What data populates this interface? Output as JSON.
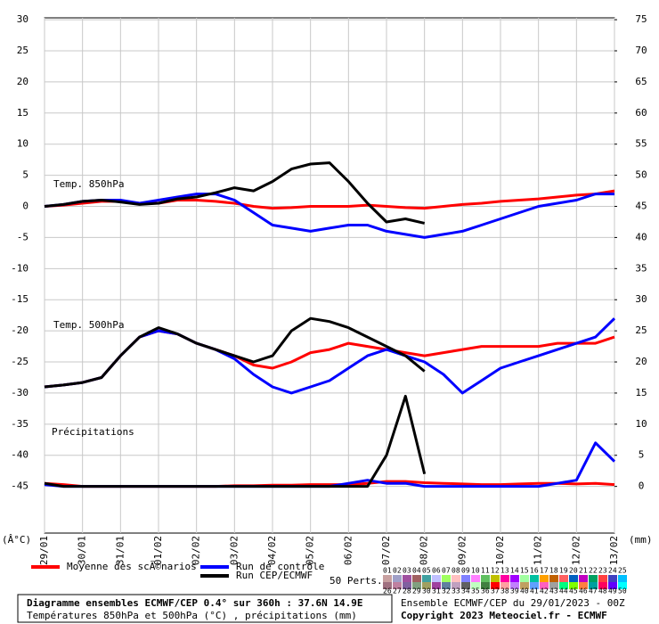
{
  "chart_data": {
    "type": "line",
    "title": "Diagramme ensembles ECMWF/CEP 0.4° sur 360h : 37.6N 14.9E",
    "subtitle": "Températures 850hPa et 500hPa (°C) , précipitations (mm)",
    "run_info": "Ensemble ECMWF/CEP du 29/01/2023 - 00Z",
    "copyright": "Copyright 2023 Meteociel.fr - ECMWF",
    "y_unit": "(Â°C)",
    "y2_unit": "(mm)",
    "x": [
      0,
      12,
      24,
      36,
      48,
      60,
      72,
      84,
      96,
      108,
      120,
      132,
      144,
      156,
      168,
      180,
      192,
      204,
      216,
      228,
      240,
      252,
      264,
      276,
      288,
      300,
      312,
      324,
      336,
      348,
      360
    ],
    "xlim": [
      0,
      360
    ],
    "xticks": [
      {
        "value": 0,
        "label": "29/01"
      },
      {
        "value": 24,
        "label": "30/01"
      },
      {
        "value": 48,
        "label": "31/01"
      },
      {
        "value": 72,
        "label": "01/02"
      },
      {
        "value": 96,
        "label": "02/02"
      },
      {
        "value": 120,
        "label": "03/02"
      },
      {
        "value": 144,
        "label": "04/02"
      },
      {
        "value": 168,
        "label": "05/02"
      },
      {
        "value": 192,
        "label": "06/02"
      },
      {
        "value": 216,
        "label": "07/02"
      },
      {
        "value": 240,
        "label": "08/02"
      },
      {
        "value": 264,
        "label": "09/02"
      },
      {
        "value": 288,
        "label": "10/02"
      },
      {
        "value": 312,
        "label": "11/02"
      },
      {
        "value": 336,
        "label": "12/02"
      },
      {
        "value": 360,
        "label": "13/02"
      }
    ],
    "ylim": [
      -52.5,
      30.3
    ],
    "yticks": [
      30,
      25,
      20,
      15,
      10,
      5,
      0,
      -5,
      -10,
      -15,
      -20,
      -25,
      -30,
      -35,
      -40,
      -45
    ],
    "y2lim": [
      -7.5,
      75.3
    ],
    "y2ticks": [
      75,
      70,
      65,
      60,
      55,
      50,
      45,
      40,
      35,
      30,
      25,
      20,
      15,
      10,
      5,
      0
    ],
    "grid": true,
    "legend": [
      {
        "name": "Moyenne des scÃ©narios",
        "color": "#ff0000"
      },
      {
        "name": "Run de contrôle",
        "color": "#0000ff"
      },
      {
        "name": "Run CEP/ECMWF",
        "color": "#000000"
      }
    ],
    "members_label": "50 Perts.",
    "members": [
      {
        "label": "01",
        "color": "#c8a0a0"
      },
      {
        "label": "02",
        "color": "#a0a0c8"
      },
      {
        "label": "03",
        "color": "#a050a0"
      },
      {
        "label": "04",
        "color": "#a06060"
      },
      {
        "label": "05",
        "color": "#40a0a0"
      },
      {
        "label": "06",
        "color": "#c0c0ff"
      },
      {
        "label": "07",
        "color": "#a0ff60"
      },
      {
        "label": "08",
        "color": "#ffc0c0"
      },
      {
        "label": "09",
        "color": "#8080ff"
      },
      {
        "label": "10",
        "color": "#ff80ff"
      },
      {
        "label": "11",
        "color": "#60c060"
      },
      {
        "label": "12",
        "color": "#c0c000"
      },
      {
        "label": "13",
        "color": "#ff00a0"
      },
      {
        "label": "14",
        "color": "#a000ff"
      },
      {
        "label": "15",
        "color": "#a0ffa0"
      },
      {
        "label": "16",
        "color": "#00c0a0"
      },
      {
        "label": "17",
        "color": "#ffa000"
      },
      {
        "label": "18",
        "color": "#c06000"
      },
      {
        "label": "19",
        "color": "#ff6060"
      },
      {
        "label": "20",
        "color": "#0060c0"
      },
      {
        "label": "21",
        "color": "#c000c0"
      },
      {
        "label": "22",
        "color": "#00a060"
      },
      {
        "label": "23",
        "color": "#ff4040"
      },
      {
        "label": "24",
        "color": "#4040c0"
      },
      {
        "label": "25",
        "color": "#00c0ff"
      },
      {
        "label": "26",
        "color": "#a07080"
      },
      {
        "label": "27",
        "color": "#c080a0"
      },
      {
        "label": "28",
        "color": "#8060a0"
      },
      {
        "label": "29",
        "color": "#80a080"
      },
      {
        "label": "30",
        "color": "#a0a060"
      },
      {
        "label": "31",
        "color": "#a040a0"
      },
      {
        "label": "32",
        "color": "#6080a0"
      },
      {
        "label": "33",
        "color": "#c0a0c0"
      },
      {
        "label": "34",
        "color": "#606060"
      },
      {
        "label": "35",
        "color": "#c0ffc0"
      },
      {
        "label": "36",
        "color": "#408040"
      },
      {
        "label": "37",
        "color": "#ff0000"
      },
      {
        "label": "38",
        "color": "#ffa0a0"
      },
      {
        "label": "39",
        "color": "#c080ff"
      },
      {
        "label": "40",
        "color": "#c0a060"
      },
      {
        "label": "41",
        "color": "#60a0ff"
      },
      {
        "label": "42",
        "color": "#ff60c0"
      },
      {
        "label": "43",
        "color": "#a0a0a0"
      },
      {
        "label": "44",
        "color": "#00ff80"
      },
      {
        "label": "45",
        "color": "#80ff00"
      },
      {
        "label": "46",
        "color": "#ff8040"
      },
      {
        "label": "47",
        "color": "#00a0a0"
      },
      {
        "label": "48",
        "color": "#ff0060"
      },
      {
        "label": "49",
        "color": "#6000ff"
      },
      {
        "label": "50",
        "color": "#00ffff"
      }
    ],
    "groups": [
      {
        "label": "Temp. 850hPa",
        "series": [
          {
            "color": "#ff0000",
            "values": [
              0,
              0.2,
              0.5,
              0.8,
              0.8,
              0.5,
              0.5,
              1,
              1,
              0.8,
              0.5,
              0,
              -0.3,
              -0.2,
              0,
              0,
              0,
              0.2,
              0,
              -0.2,
              -0.3,
              0,
              0.3,
              0.5,
              0.8,
              1,
              1.2,
              1.5,
              1.8,
              2,
              2.5
            ]
          },
          {
            "color": "#0000ff",
            "values": [
              0,
              0.3,
              0.8,
              1,
              1,
              0.5,
              1,
              1.5,
              2,
              2,
              1,
              -1,
              -3,
              -3.5,
              -4,
              -3.5,
              -3,
              -3,
              -4,
              -4.5,
              -5,
              -4.5,
              -4,
              -3,
              -2,
              -1,
              0,
              0.5,
              1,
              2,
              2
            ]
          },
          {
            "color": "#000000",
            "values": [
              0,
              0.3,
              0.8,
              1,
              0.7,
              0.3,
              0.5,
              1.2,
              1.5,
              2.2,
              3,
              2.5,
              4,
              6,
              6.8,
              7,
              4,
              0.5,
              -2.5,
              -2,
              -2.7,
              null,
              null,
              null,
              null,
              null,
              null,
              null,
              null,
              null,
              null
            ]
          }
        ]
      },
      {
        "label": "Temp. 500hPa",
        "series": [
          {
            "color": "#ff0000",
            "values": [
              -29,
              -28.7,
              -28.3,
              -27.5,
              -24,
              -21,
              -20,
              -20.5,
              -22,
              -23,
              -24,
              -25.5,
              -26,
              -25,
              -23.5,
              -23,
              -22,
              -22.5,
              -23,
              -23.5,
              -24,
              -23.5,
              -23,
              -22.5,
              -22.5,
              -22.5,
              -22.5,
              -22,
              -22,
              -22,
              -21
            ]
          },
          {
            "color": "#0000ff",
            "values": [
              -29,
              -28.7,
              -28.3,
              -27.5,
              -24,
              -21,
              -20,
              -20.5,
              -22,
              -23,
              -24.5,
              -27,
              -29,
              -30,
              -29,
              -28,
              -26,
              -24,
              -23,
              -24,
              -25,
              -27,
              -30,
              -28,
              -26,
              -25,
              -24,
              -23,
              -22,
              -21,
              -18
            ]
          },
          {
            "color": "#000000",
            "values": [
              -29,
              -28.7,
              -28.3,
              -27.5,
              -24,
              -21,
              -19.5,
              -20.5,
              -22,
              -23,
              -24,
              -25,
              -24,
              -20,
              -18,
              -18.5,
              -19.5,
              -21,
              -22.5,
              -24,
              -26.5,
              null,
              null,
              null,
              null,
              null,
              null,
              null,
              null,
              null,
              null
            ]
          }
        ]
      },
      {
        "label": "Précipitations",
        "series": [
          {
            "color": "#ff0000",
            "axis": "y2",
            "values": [
              0.5,
              0.3,
              0,
              0,
              0,
              0,
              0,
              0,
              0,
              0,
              0.1,
              0.1,
              0.2,
              0.2,
              0.3,
              0.3,
              0.3,
              0.5,
              0.8,
              0.8,
              0.6,
              0.5,
              0.4,
              0.3,
              0.3,
              0.4,
              0.5,
              0.5,
              0.4,
              0.5,
              0.3
            ]
          },
          {
            "color": "#0000ff",
            "axis": "y2",
            "values": [
              0.3,
              0,
              0,
              0,
              0,
              0,
              0,
              0,
              0,
              0,
              0,
              0,
              0,
              0,
              0,
              0,
              0.5,
              1,
              0.5,
              0.5,
              0,
              0,
              0,
              0,
              0,
              0,
              0,
              0.5,
              1,
              7,
              4
            ]
          },
          {
            "color": "#000000",
            "axis": "y2",
            "values": [
              0.5,
              0,
              0,
              0,
              0,
              0,
              0,
              0,
              0,
              0,
              0,
              0,
              0,
              0,
              0,
              0,
              0,
              0,
              5,
              14.5,
              2,
              null,
              null,
              null,
              null,
              null,
              null,
              null,
              null,
              null,
              null
            ]
          }
        ]
      }
    ]
  }
}
